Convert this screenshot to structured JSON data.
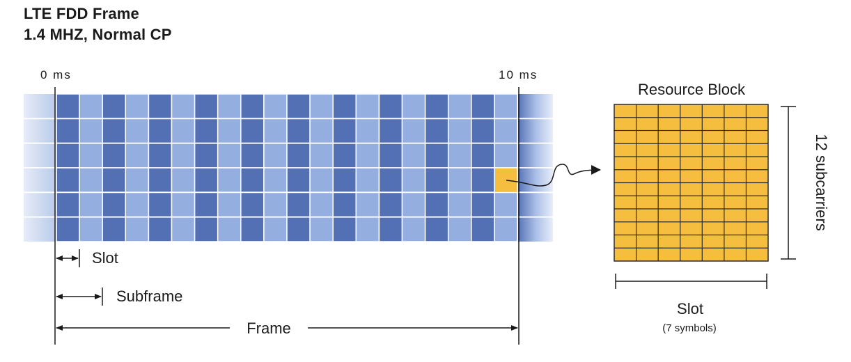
{
  "title": "LTE FDD Frame",
  "subtitle": "1.4 MHZ, Normal CP",
  "frame": {
    "start_label": "0 ms",
    "end_label": "10 ms",
    "slot_count": 20,
    "rb_rows": 6,
    "highlighted_slot_index": 19,
    "highlighted_rb_row": 3
  },
  "dimension_labels": {
    "slot": "Slot",
    "subframe": "Subframe",
    "frame": "Frame"
  },
  "resource_block": {
    "title": "Resource Block",
    "symbols": 7,
    "subcarriers": 12,
    "subcarriers_label": "12 subcarriers",
    "slot_label": "Slot",
    "slot_sublabel": "(7 symbols)"
  },
  "colors": {
    "dark_slot": "#5470b5",
    "light_slot": "#94aee0",
    "fade_light": "#dde6f6",
    "fade_mid": "#b3c5ea",
    "highlight": "#f5be3f",
    "rb_fill": "#f5be3f",
    "rb_grid": "#2a2a2a",
    "line": "#1a1a1a"
  }
}
